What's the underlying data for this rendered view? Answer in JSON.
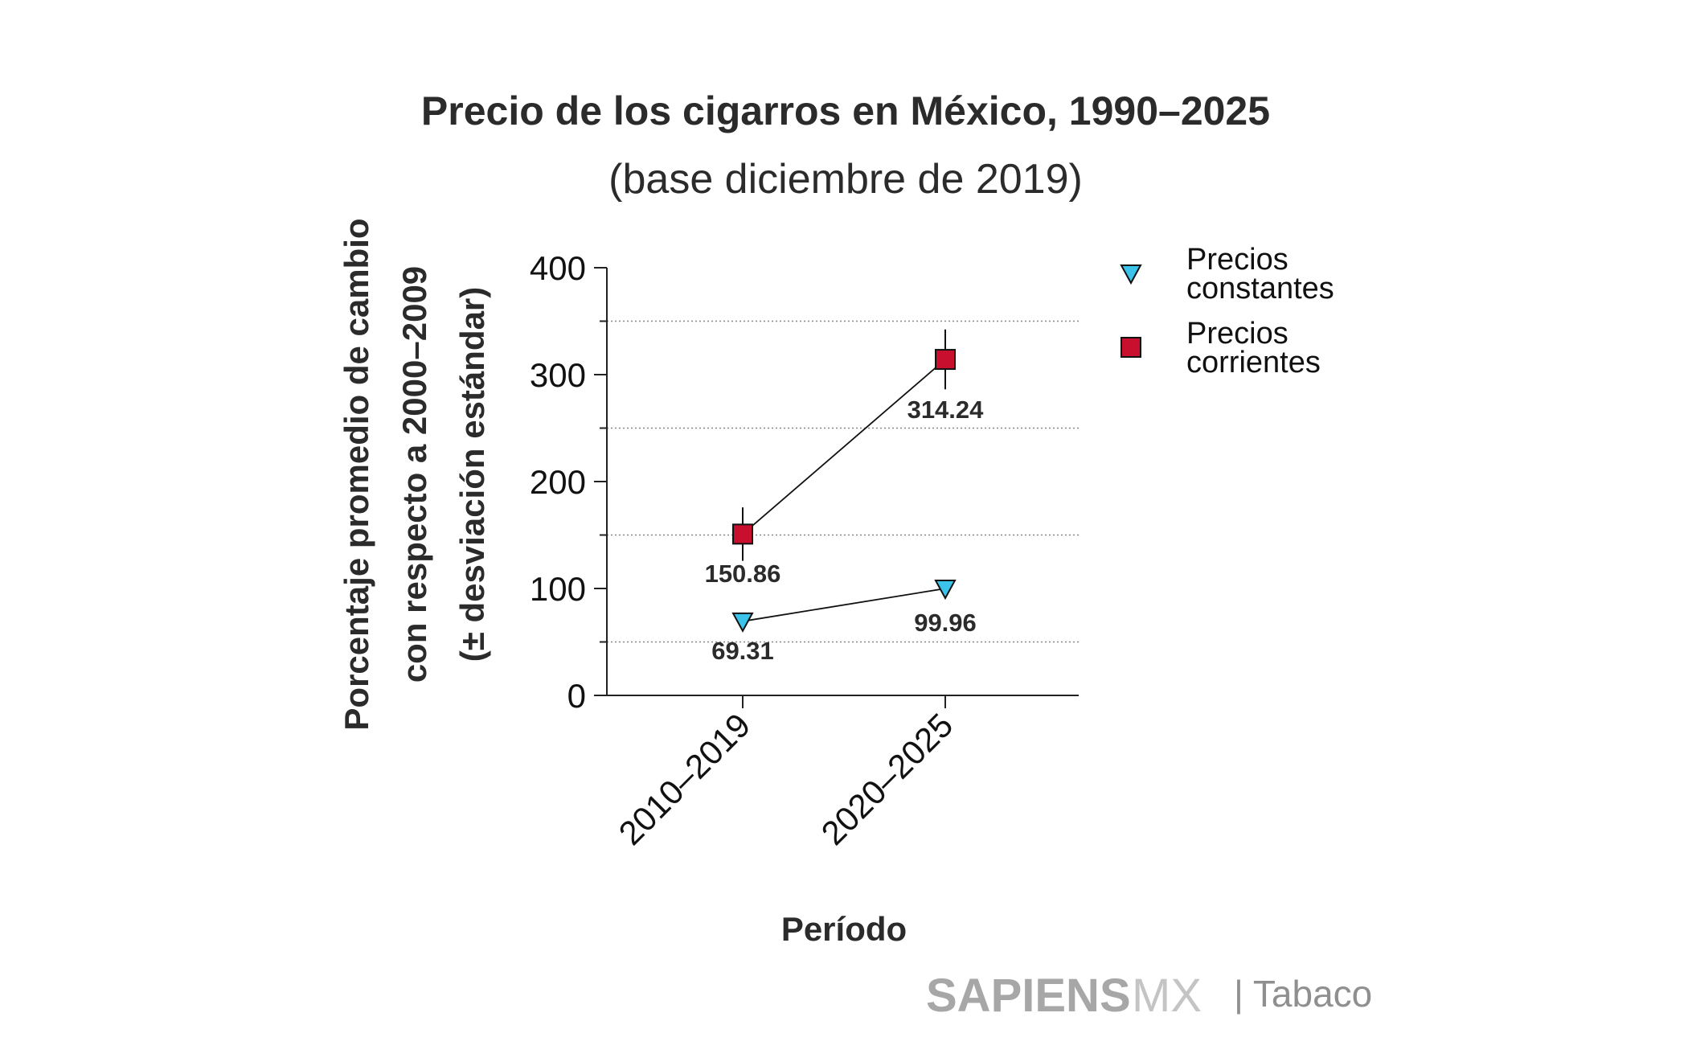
{
  "chart_data": {
    "type": "line",
    "title": "Precio de los cigarros en México, 1990–2025",
    "subtitle": "(base diciembre de 2019)",
    "ylabel_lines": [
      "Porcentaje promedio de cambio",
      "con respecto a 2000–2009",
      "(± desviación estándar)"
    ],
    "xlabel": "Período",
    "categories": [
      "2010–2019",
      "2020–2025"
    ],
    "ylim": [
      0,
      400
    ],
    "yticks": [
      0,
      100,
      200,
      300,
      400
    ],
    "grid_y": [
      50,
      150,
      250,
      350
    ],
    "series": [
      {
        "name_lines": [
          "Precios",
          "constantes"
        ],
        "marker": "triangle-down",
        "color": "#3cc3ea",
        "values": [
          69.31,
          99.96
        ],
        "labels": [
          "69.31",
          "99.96"
        ],
        "error": [
          3,
          3
        ]
      },
      {
        "name_lines": [
          "Precios",
          "corrientes"
        ],
        "marker": "square",
        "color": "#c8102e",
        "values": [
          150.86,
          314.24
        ],
        "labels": [
          "150.86",
          "314.24"
        ],
        "error": [
          25,
          28
        ]
      }
    ]
  },
  "brand": {
    "name": "SAPIENS",
    "suffix": "MX",
    "section": "| Tabaco"
  },
  "colors": {
    "text": "#2b2b2b",
    "grid": "#888888",
    "brand_gray": "#a7a7a7"
  }
}
